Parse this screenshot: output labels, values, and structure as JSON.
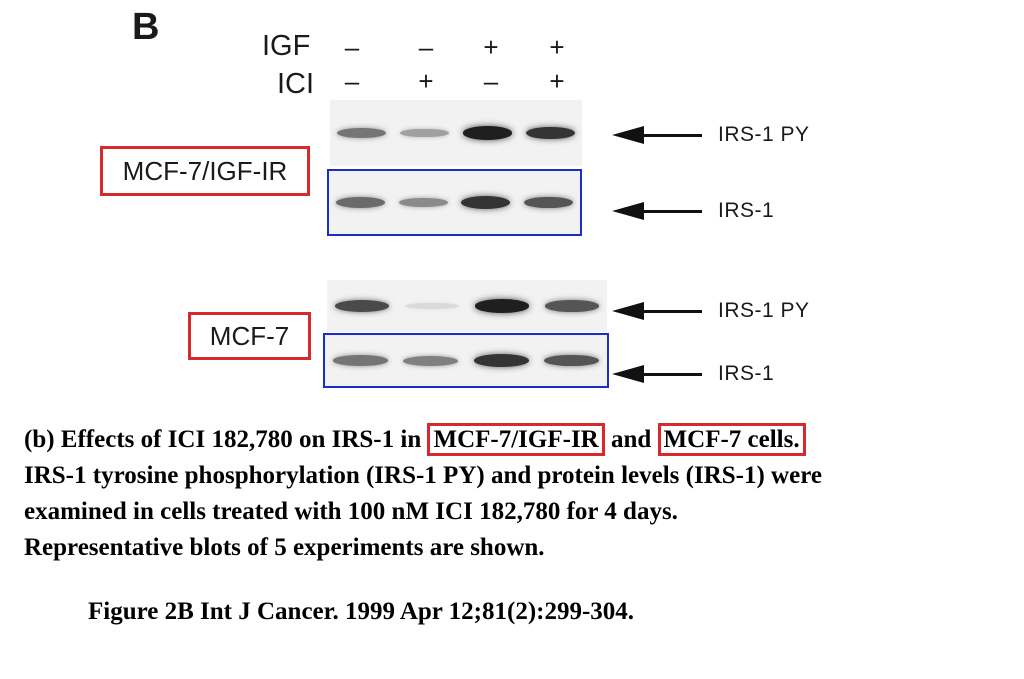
{
  "figure": {
    "panel_letter": "B",
    "treatments": [
      {
        "label": "IGF",
        "lanes": [
          "–",
          "–",
          "+",
          "+"
        ]
      },
      {
        "label": "ICI",
        "lanes": [
          "–",
          "+",
          "–",
          "+"
        ]
      }
    ],
    "cell_lines": [
      {
        "label": "MCF-7/IGF-IR",
        "blots": [
          {
            "label": "IRS-1 PY",
            "band_intensity": [
              0.55,
              0.35,
              0.95,
              0.85
            ]
          },
          {
            "label": "IRS-1",
            "band_intensity": [
              0.6,
              0.45,
              0.85,
              0.7
            ]
          }
        ]
      },
      {
        "label": "MCF-7",
        "blots": [
          {
            "label": "IRS-1 PY",
            "band_intensity": [
              0.75,
              0.08,
              0.95,
              0.7
            ]
          },
          {
            "label": "IRS-1",
            "band_intensity": [
              0.55,
              0.5,
              0.85,
              0.7
            ]
          }
        ]
      }
    ],
    "colors": {
      "highlight_red": "#d62b2b",
      "highlight_blue": "#1a2cc9"
    }
  },
  "caption": {
    "line1_prefix": "(b) Effects of ICI 182,780 on IRS-1 in ",
    "line1_cell1": "MCF-7/IGF-IR",
    "line1_and": " and ",
    "line1_cell2": "MCF-7 cells.",
    "line2": "IRS-1 tyrosine phosphorylation (IRS-1 PY) and protein levels (IRS-1) were",
    "line3": "examined in cells treated with 100 nM ICI 182,780 for 4 days.",
    "line4": "Representative blots of 5 experiments are shown."
  },
  "citation": "Figure 2B Int J Cancer. 1999 Apr 12;81(2):299-304."
}
